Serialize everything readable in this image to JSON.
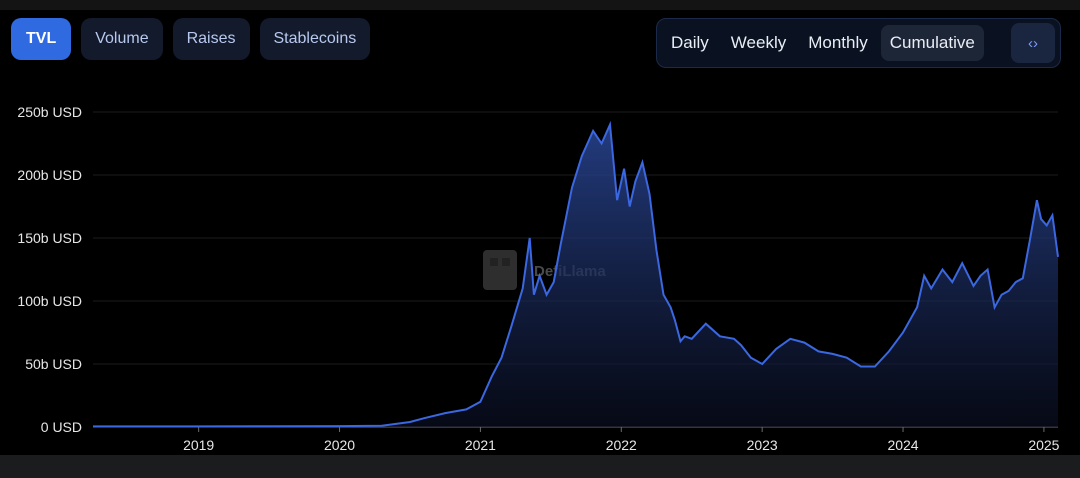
{
  "tabs": [
    {
      "label": "TVL",
      "active": true
    },
    {
      "label": "Volume",
      "active": false
    },
    {
      "label": "Raises",
      "active": false
    },
    {
      "label": "Stablecoins",
      "active": false
    }
  ],
  "periods": [
    {
      "label": "Daily",
      "active": false
    },
    {
      "label": "Weekly",
      "active": false
    },
    {
      "label": "Monthly",
      "active": false
    },
    {
      "label": "Cumulative",
      "active": true
    }
  ],
  "embed_icon": "code-brackets-icon",
  "watermark": "DefiLlama",
  "colors": {
    "line": "#3b67e0",
    "accent": "#2f6ae0",
    "background": "#000000"
  },
  "chart_data": {
    "type": "area",
    "title": "",
    "xlabel": "",
    "ylabel": "",
    "ylim": [
      0,
      250
    ],
    "xlim": [
      2018.25,
      2025.1
    ],
    "y_ticks": [
      {
        "value": 0,
        "label": "0 USD"
      },
      {
        "value": 50,
        "label": "50b USD"
      },
      {
        "value": 100,
        "label": "100b USD"
      },
      {
        "value": 150,
        "label": "150b USD"
      },
      {
        "value": 200,
        "label": "200b USD"
      },
      {
        "value": 250,
        "label": "250b USD"
      }
    ],
    "x_ticks": [
      {
        "value": 2019,
        "label": "2019"
      },
      {
        "value": 2020,
        "label": "2020"
      },
      {
        "value": 2021,
        "label": "2021"
      },
      {
        "value": 2022,
        "label": "2022"
      },
      {
        "value": 2023,
        "label": "2023"
      },
      {
        "value": 2024,
        "label": "2024"
      },
      {
        "value": 2025,
        "label": "2025"
      }
    ],
    "grid": true,
    "legend": "none",
    "series": [
      {
        "unit": "billion USD",
        "x": [
          2018.25,
          2019.0,
          2019.5,
          2020.0,
          2020.3,
          2020.5,
          2020.6,
          2020.75,
          2020.9,
          2021.0,
          2021.08,
          2021.15,
          2021.22,
          2021.3,
          2021.35,
          2021.38,
          2021.42,
          2021.47,
          2021.52,
          2021.57,
          2021.65,
          2021.72,
          2021.8,
          2021.86,
          2021.92,
          2021.97,
          2022.02,
          2022.06,
          2022.1,
          2022.15,
          2022.2,
          2022.25,
          2022.3,
          2022.35,
          2022.38,
          2022.42,
          2022.45,
          2022.5,
          2022.6,
          2022.7,
          2022.8,
          2022.85,
          2022.92,
          2023.0,
          2023.1,
          2023.2,
          2023.3,
          2023.4,
          2023.5,
          2023.6,
          2023.7,
          2023.8,
          2023.9,
          2024.0,
          2024.1,
          2024.15,
          2024.2,
          2024.28,
          2024.35,
          2024.42,
          2024.5,
          2024.55,
          2024.6,
          2024.65,
          2024.7,
          2024.75,
          2024.8,
          2024.85,
          2024.9,
          2024.95,
          2024.98,
          2025.02,
          2025.06,
          2025.1
        ],
        "y": [
          0.5,
          0.5,
          0.6,
          0.7,
          1.0,
          4,
          7,
          11,
          14,
          20,
          40,
          55,
          80,
          110,
          150,
          105,
          120,
          105,
          115,
          145,
          190,
          215,
          235,
          225,
          240,
          180,
          205,
          175,
          195,
          210,
          185,
          140,
          105,
          95,
          85,
          68,
          72,
          70,
          82,
          72,
          70,
          65,
          55,
          50,
          62,
          70,
          67,
          60,
          58,
          55,
          48,
          48,
          60,
          75,
          95,
          120,
          110,
          125,
          115,
          130,
          112,
          120,
          125,
          95,
          105,
          108,
          115,
          118,
          148,
          180,
          165,
          160,
          168,
          135
        ]
      }
    ]
  }
}
